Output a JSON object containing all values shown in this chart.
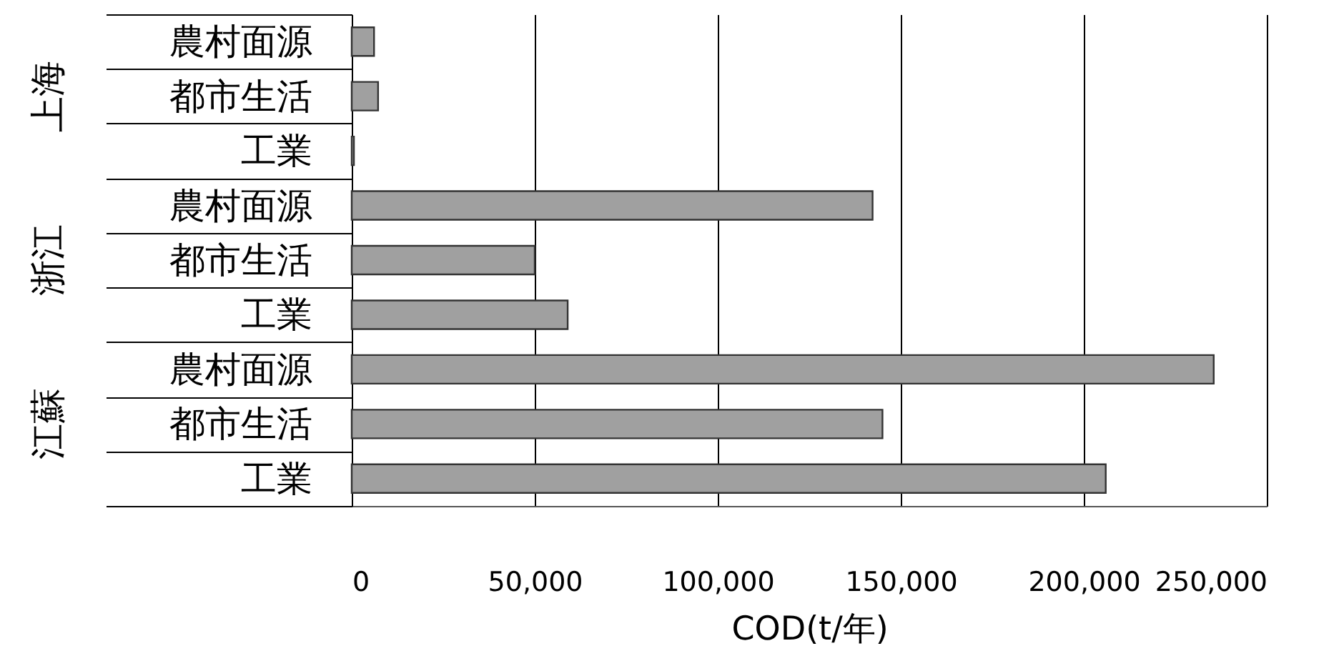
{
  "chart_data": {
    "type": "bar",
    "orientation": "horizontal",
    "xlabel": "COD(t/年)",
    "categories": [
      "農村面源",
      "都市生活",
      "工業",
      "農村面源",
      "都市生活",
      "工業",
      "農村面源",
      "都市生活",
      "工業"
    ],
    "values": [
      6100,
      7200,
      600,
      142300,
      50000,
      59000,
      235500,
      145000,
      206000
    ],
    "color": "#a0a0a0",
    "annotations": [
      "上海",
      "浙江",
      "江蘇"
    ],
    "xlim": [
      0,
      250000
    ],
    "xticks": [
      0,
      {
        "value": 50000,
        "label": "50,000"
      },
      {
        "value": 100000,
        "label": "100,000"
      },
      {
        "value": 150000,
        "label": "150,000"
      },
      {
        "value": 200000,
        "label": "200,000"
      },
      {
        "value": 250000,
        "label": "250,000"
      }
    ],
    "grid": "x"
  }
}
